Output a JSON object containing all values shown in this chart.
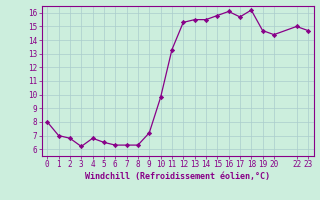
{
  "x": [
    0,
    1,
    2,
    3,
    4,
    5,
    6,
    7,
    8,
    9,
    10,
    11,
    12,
    13,
    14,
    15,
    16,
    17,
    18,
    19,
    20,
    22,
    23
  ],
  "y": [
    8.0,
    7.0,
    6.8,
    6.2,
    6.8,
    6.5,
    6.3,
    6.3,
    6.3,
    7.2,
    9.8,
    13.3,
    15.3,
    15.5,
    15.5,
    15.8,
    16.1,
    15.7,
    16.2,
    14.7,
    14.4,
    15.0,
    14.7
  ],
  "xlim": [
    -0.5,
    23.5
  ],
  "ylim": [
    5.5,
    16.5
  ],
  "yticks": [
    6,
    7,
    8,
    9,
    10,
    11,
    12,
    13,
    14,
    15,
    16
  ],
  "xticks": [
    0,
    1,
    2,
    3,
    4,
    5,
    6,
    7,
    8,
    9,
    10,
    11,
    12,
    13,
    14,
    15,
    16,
    17,
    18,
    19,
    20,
    22,
    23
  ],
  "xlabel": "Windchill (Refroidissement éolien,°C)",
  "line_color": "#880088",
  "marker": "D",
  "marker_size": 2.2,
  "bg_color": "#cceedd",
  "grid_color": "#aacccc",
  "label_color": "#880088",
  "tick_color": "#880088",
  "tick_fontsize": 5.5,
  "xlabel_fontsize": 6.0
}
